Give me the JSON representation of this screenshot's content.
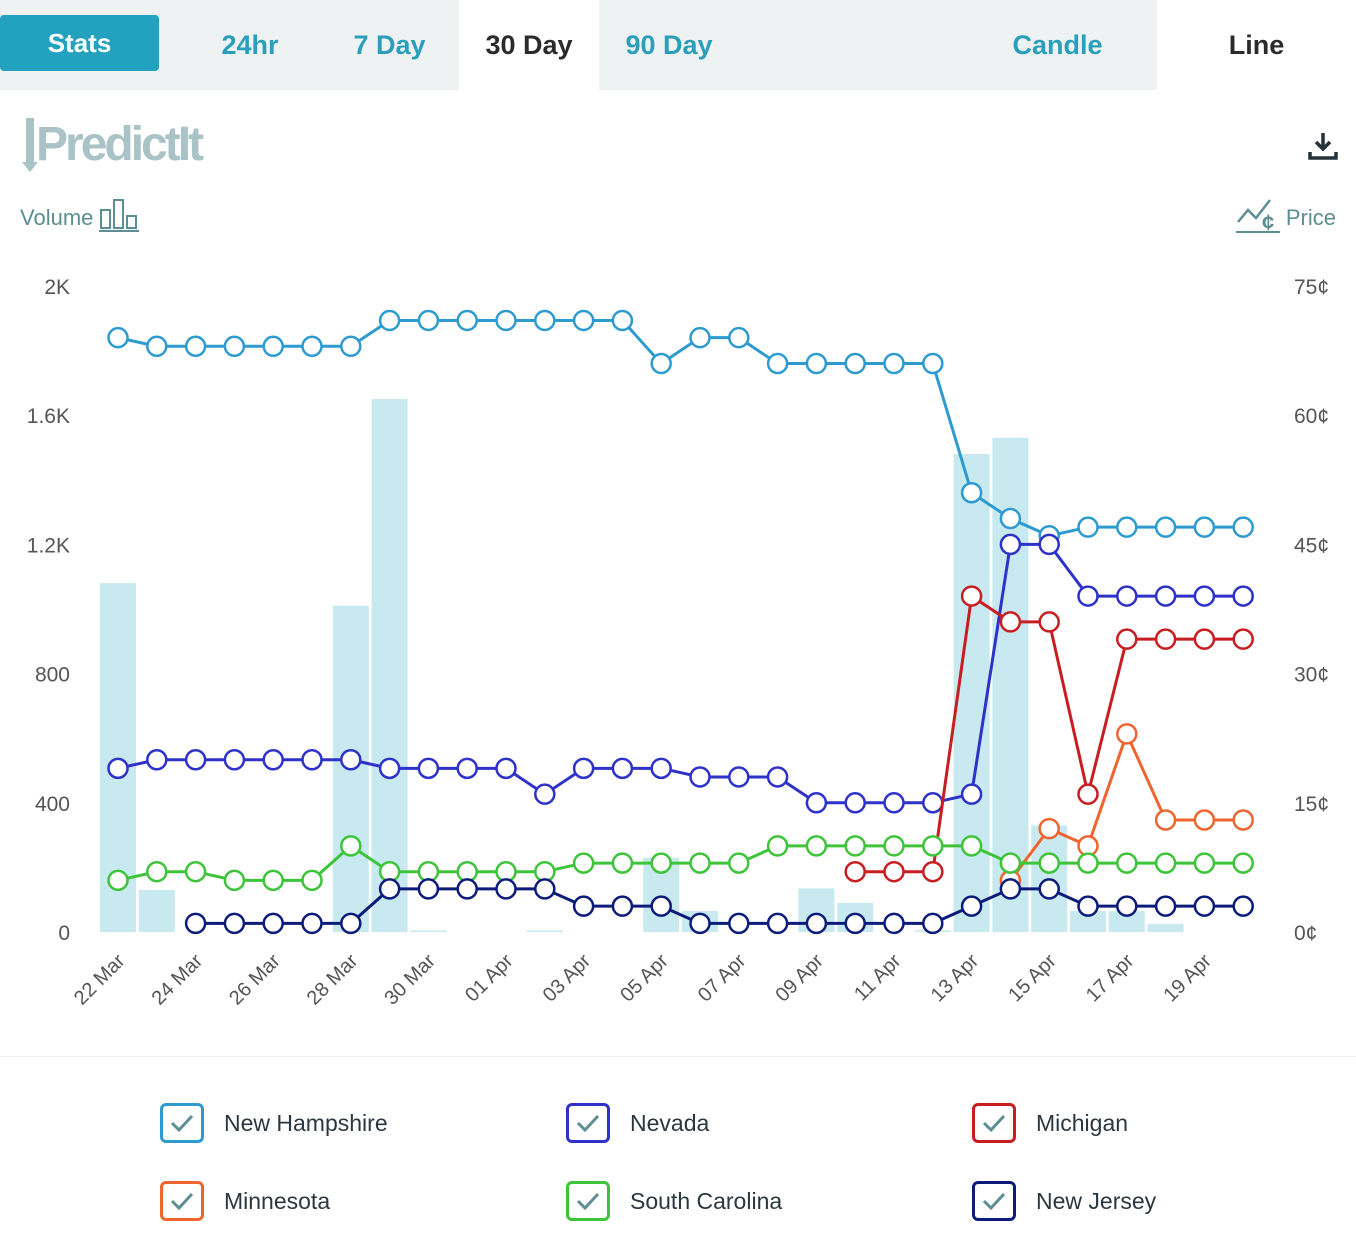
{
  "tabs": {
    "stats": "Stats",
    "ranges": [
      "24hr",
      "7 Day",
      "30 Day",
      "90 Day"
    ],
    "active_range": "30 Day",
    "views": [
      "Candle",
      "Line"
    ],
    "active_view": "Line"
  },
  "logo_text": "PredictIt",
  "labels": {
    "volume": "Volume",
    "price": "Price"
  },
  "colors": {
    "accent": "#23a2bf",
    "volume_bar": "#c8e9ef",
    "axis_text": "#555555"
  },
  "chart_data": {
    "type": "line",
    "x": [
      "22 Mar",
      "23 Mar",
      "24 Mar",
      "25 Mar",
      "26 Mar",
      "27 Mar",
      "28 Mar",
      "29 Mar",
      "30 Mar",
      "31 Mar",
      "01 Apr",
      "02 Apr",
      "03 Apr",
      "04 Apr",
      "05 Apr",
      "06 Apr",
      "07 Apr",
      "08 Apr",
      "09 Apr",
      "10 Apr",
      "11 Apr",
      "12 Apr",
      "13 Apr",
      "14 Apr",
      "15 Apr",
      "16 Apr",
      "17 Apr",
      "18 Apr",
      "19 Apr",
      "20 Apr"
    ],
    "x_tick_labels": [
      "22 Mar",
      "24 Mar",
      "26 Mar",
      "28 Mar",
      "30 Mar",
      "01 Apr",
      "03 Apr",
      "05 Apr",
      "07 Apr",
      "09 Apr",
      "11 Apr",
      "13 Apr",
      "15 Apr",
      "17 Apr",
      "19 Apr"
    ],
    "y_left": {
      "label": "Volume",
      "ticks": [
        "0",
        "400",
        "800",
        "1.2K",
        "1.6K",
        "2K"
      ],
      "range": [
        0,
        2000
      ]
    },
    "y_right": {
      "label": "Price",
      "ticks": [
        "0¢",
        "15¢",
        "30¢",
        "45¢",
        "60¢",
        "75¢"
      ],
      "range": [
        0,
        75
      ]
    },
    "grid": false,
    "legend_position": "bottom",
    "volume": [
      1080,
      130,
      0,
      0,
      0,
      0,
      1010,
      1650,
      5,
      0,
      0,
      5,
      0,
      0,
      230,
      65,
      0,
      0,
      135,
      90,
      0,
      5,
      1480,
      1530,
      330,
      65,
      65,
      25,
      0,
      0
    ],
    "series": [
      {
        "name": "New Hampshire",
        "color": "#2e9bd0",
        "values": [
          69,
          68,
          68,
          68,
          68,
          68,
          68,
          71,
          71,
          71,
          71,
          71,
          71,
          71,
          66,
          69,
          69,
          66,
          66,
          66,
          66,
          66,
          51,
          48,
          46,
          47,
          47,
          47,
          47,
          47
        ]
      },
      {
        "name": "Nevada",
        "color": "#2e32c9",
        "values": [
          19,
          20,
          20,
          20,
          20,
          20,
          20,
          19,
          19,
          19,
          19,
          16,
          19,
          19,
          19,
          18,
          18,
          18,
          15,
          15,
          15,
          15,
          16,
          45,
          45,
          39,
          39,
          39,
          39,
          39
        ]
      },
      {
        "name": "Michigan",
        "color": "#c81e22",
        "values": [
          null,
          null,
          null,
          null,
          null,
          null,
          null,
          null,
          null,
          null,
          null,
          null,
          null,
          null,
          null,
          null,
          null,
          null,
          null,
          7,
          7,
          7,
          39,
          36,
          36,
          16,
          34,
          34,
          34,
          34
        ]
      },
      {
        "name": "Minnesota",
        "color": "#ef6530",
        "values": [
          null,
          null,
          null,
          null,
          null,
          null,
          null,
          null,
          null,
          null,
          null,
          null,
          null,
          null,
          null,
          null,
          null,
          null,
          null,
          null,
          null,
          null,
          null,
          6,
          12,
          10,
          23,
          13,
          13,
          13
        ]
      },
      {
        "name": "South Carolina",
        "color": "#3ec43a",
        "values": [
          6,
          7,
          7,
          6,
          6,
          6,
          10,
          7,
          7,
          7,
          7,
          7,
          8,
          8,
          8,
          8,
          8,
          10,
          10,
          10,
          10,
          10,
          10,
          8,
          8,
          8,
          8,
          8,
          8,
          8
        ]
      },
      {
        "name": "New Jersey",
        "color": "#0d1c7a",
        "values": [
          null,
          null,
          1,
          1,
          1,
          1,
          1,
          5,
          5,
          5,
          5,
          5,
          3,
          3,
          3,
          1,
          1,
          1,
          1,
          1,
          1,
          1,
          3,
          5,
          5,
          3,
          3,
          3,
          3,
          3
        ]
      }
    ]
  },
  "legend": [
    {
      "label": "New Hampshire",
      "color": "#2e9bd0"
    },
    {
      "label": "Nevada",
      "color": "#2e32c9"
    },
    {
      "label": "Michigan",
      "color": "#c81e22"
    },
    {
      "label": "Minnesota",
      "color": "#ef6530"
    },
    {
      "label": "South Carolina",
      "color": "#3ec43a"
    },
    {
      "label": "New Jersey",
      "color": "#0d1c7a"
    }
  ]
}
